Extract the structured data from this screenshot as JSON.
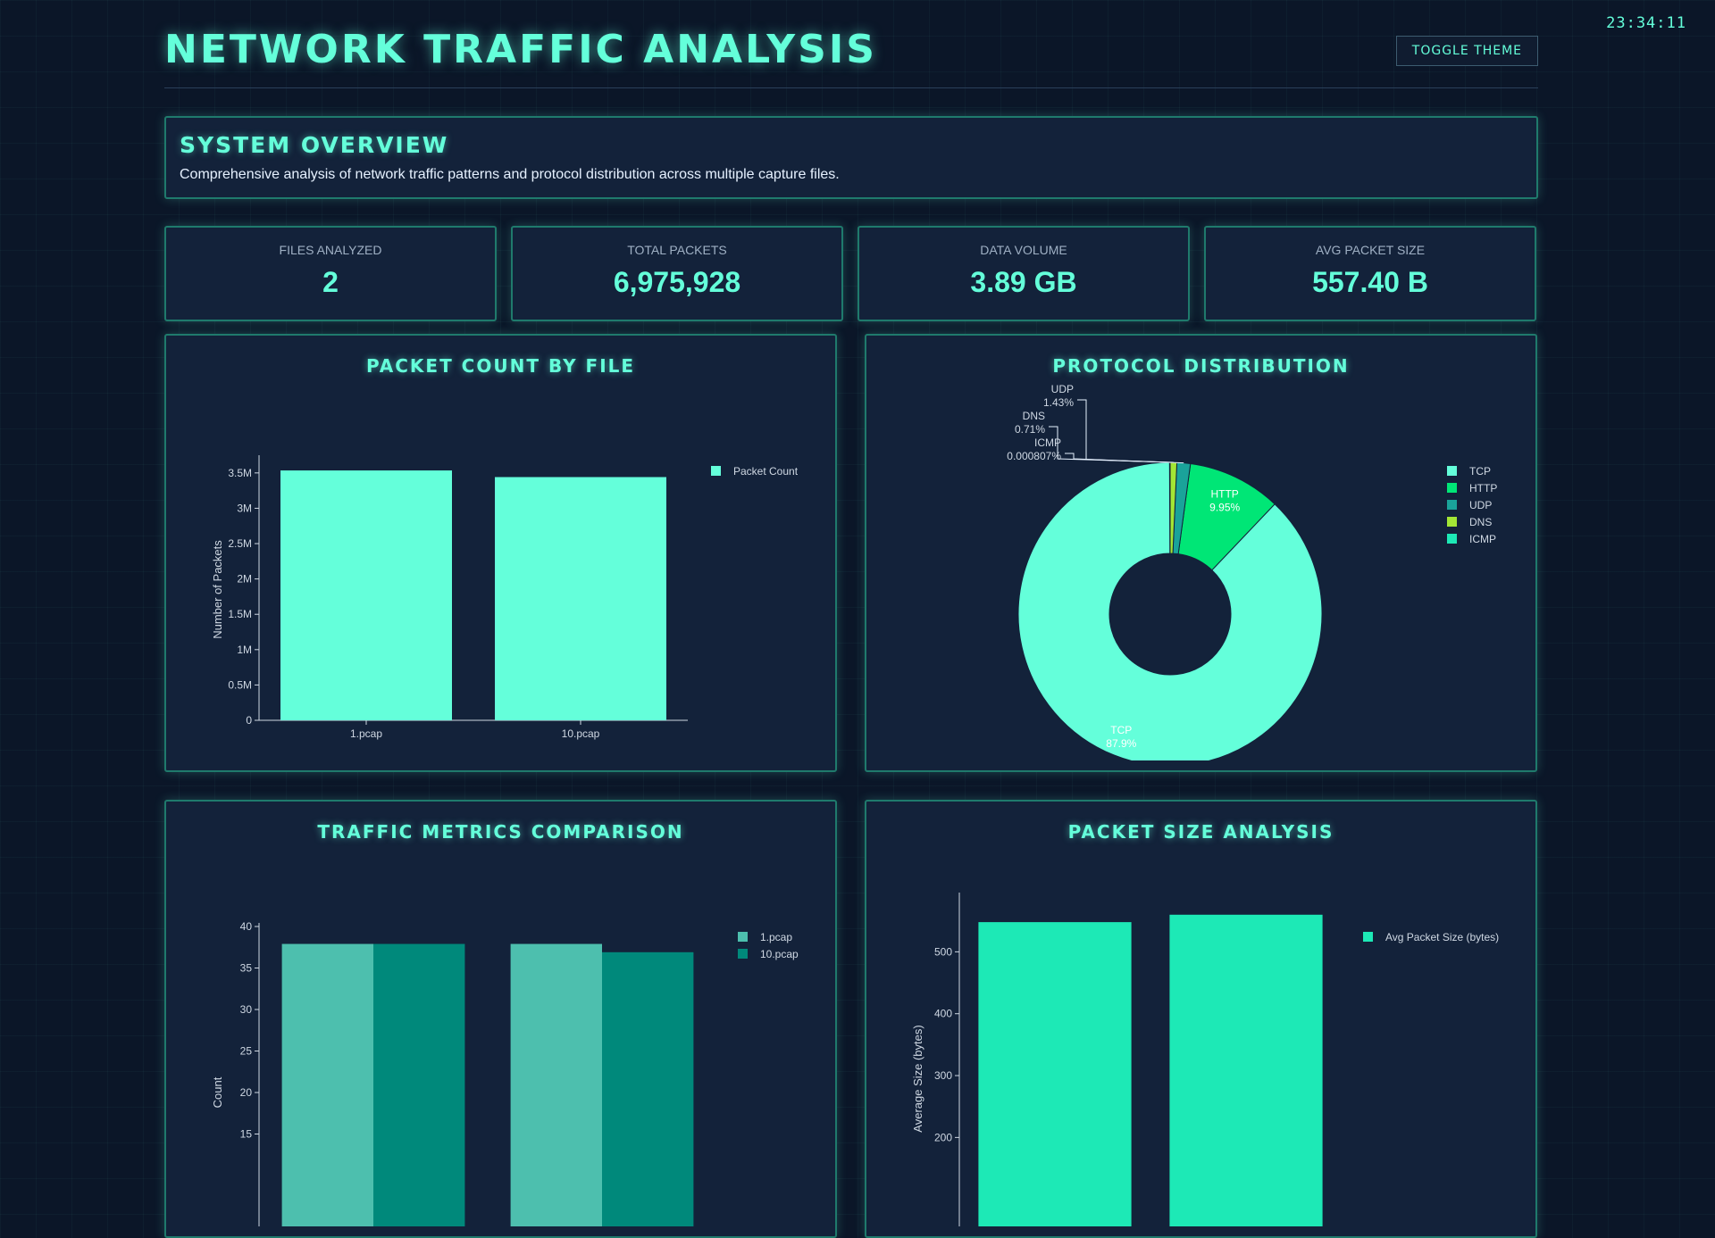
{
  "clock": "23:34:11",
  "header": {
    "title": "NETWORK TRAFFIC ANALYSIS",
    "toggle_label": "TOGGLE THEME"
  },
  "overview": {
    "title": "SYSTEM OVERVIEW",
    "description": "Comprehensive analysis of network traffic patterns and protocol distribution across multiple capture files."
  },
  "stats": [
    {
      "label": "FILES ANALYZED",
      "value": "2"
    },
    {
      "label": "TOTAL PACKETS",
      "value": "6,975,928"
    },
    {
      "label": "DATA VOLUME",
      "value": "3.89 GB"
    },
    {
      "label": "AVG PACKET SIZE",
      "value": "557.40 B"
    }
  ],
  "colors": {
    "accent": "#64ffda",
    "http": "#00e676",
    "udp": "#1aa39a",
    "dns": "#a3e635",
    "icmp": "#1de9b6",
    "file1": "#4dbfae",
    "file2": "#00897b",
    "size": "#1de9b6"
  },
  "chart_data": [
    {
      "type": "bar",
      "title": "PACKET COUNT BY FILE",
      "categories": [
        "1.pcap",
        "10.pcap"
      ],
      "series": [
        {
          "name": "Packet Count",
          "values": [
            3535000,
            3441000
          ]
        }
      ],
      "ylabel": "Number of Packets",
      "ylim": [
        0,
        3700000
      ],
      "yticks": [
        0,
        500000,
        1000000,
        1500000,
        2000000,
        2500000,
        3000000,
        3500000
      ],
      "ytick_labels": [
        "0",
        "0.5M",
        "1M",
        "1.5M",
        "2M",
        "2.5M",
        "3M",
        "3.5M"
      ],
      "legend": "top-right"
    },
    {
      "type": "pie",
      "title": "PROTOCOL DISTRIBUTION",
      "hole": true,
      "labels": [
        "TCP",
        "HTTP",
        "UDP",
        "DNS",
        "ICMP"
      ],
      "values": [
        87.9,
        9.95,
        1.43,
        0.71,
        0.000807
      ],
      "percent_labels": [
        "87.9%",
        "9.95%",
        "1.43%",
        "0.71%",
        "0.000807%"
      ],
      "legend": "top-right"
    },
    {
      "type": "bar",
      "title": "TRAFFIC METRICS COMPARISON",
      "categories": [
        "",
        ""
      ],
      "series": [
        {
          "name": "1.pcap",
          "values": [
            37.9,
            37.9
          ]
        },
        {
          "name": "10.pcap",
          "values": [
            37.9,
            36.9
          ]
        }
      ],
      "ylabel": "Count",
      "ylim": [
        0,
        40
      ],
      "yticks": [
        15,
        20,
        25,
        30,
        35,
        40
      ],
      "legend": "top-right"
    },
    {
      "type": "bar",
      "title": "PACKET SIZE ANALYSIS",
      "categories": [
        "",
        ""
      ],
      "series": [
        {
          "name": "Avg Packet Size (bytes)",
          "values": [
            548,
            560
          ]
        }
      ],
      "ylabel": "Average Size (bytes)",
      "ylim": [
        0,
        590
      ],
      "yticks": [
        200,
        300,
        400,
        500
      ],
      "legend": "top-right"
    }
  ]
}
